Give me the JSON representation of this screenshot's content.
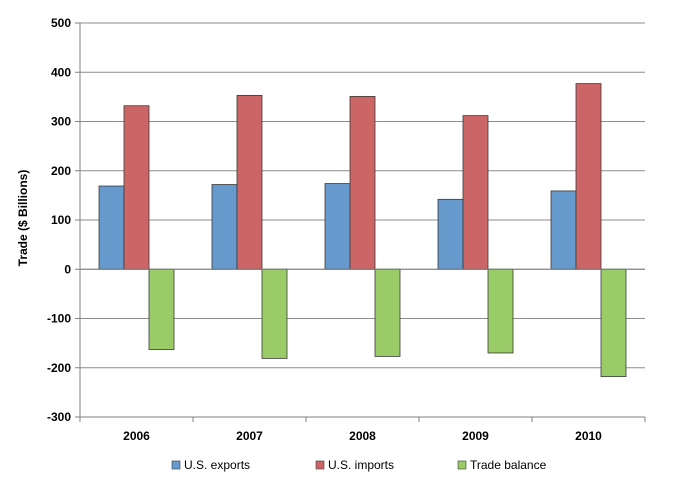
{
  "chart_data": {
    "type": "bar",
    "title": "",
    "xlabel": "",
    "ylabel": "Trade ($ Billions)",
    "ylim": [
      -300,
      500
    ],
    "ytick_step": 100,
    "grid": true,
    "legend_position": "bottom",
    "categories": [
      "2006",
      "2007",
      "2008",
      "2009",
      "2010"
    ],
    "series": [
      {
        "name": "U.S. exports",
        "color": "#6699cc",
        "values": [
          169,
          172,
          174,
          142,
          159
        ]
      },
      {
        "name": "U.S. imports",
        "color": "#cc6666",
        "values": [
          332,
          353,
          351,
          312,
          377
        ]
      },
      {
        "name": "Trade balance",
        "color": "#99cc66",
        "values": [
          -163,
          -181,
          -177,
          -170,
          -218
        ]
      }
    ]
  }
}
